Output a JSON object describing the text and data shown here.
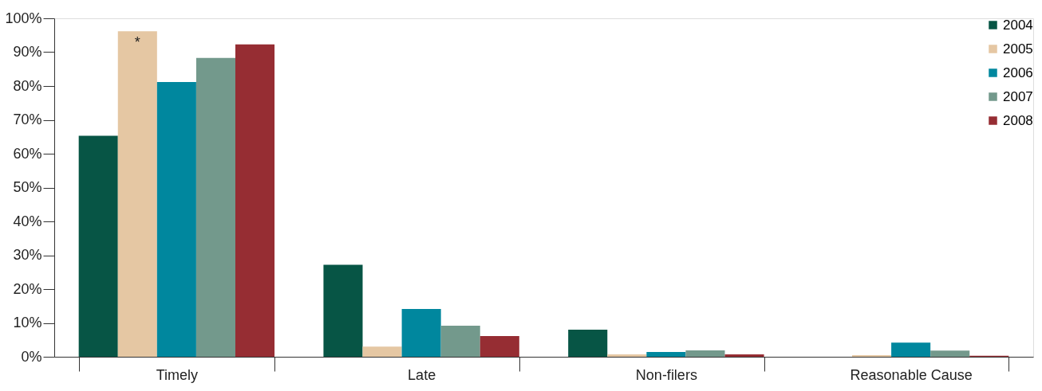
{
  "chart_data": {
    "type": "bar",
    "categories": [
      "Timely",
      "Late",
      "Non-filers",
      "Reasonable Cause"
    ],
    "series": [
      {
        "name": "2004",
        "color": "#075545",
        "values": [
          65.3,
          27.2,
          8.0,
          0
        ]
      },
      {
        "name": "2005",
        "color": "#e5c7a3",
        "values": [
          96.2,
          3.0,
          0.7,
          0.5
        ]
      },
      {
        "name": "2006",
        "color": "#00879e",
        "values": [
          81.2,
          14.1,
          1.4,
          4.2
        ]
      },
      {
        "name": "2007",
        "color": "#73998c",
        "values": [
          88.3,
          9.2,
          1.9,
          1.8
        ]
      },
      {
        "name": "2008",
        "color": "#962d33",
        "values": [
          92.3,
          6.1,
          0.7,
          0.3
        ]
      }
    ],
    "ylim": [
      0,
      100
    ],
    "yticks": [
      {
        "value": 0,
        "label": "0%"
      },
      {
        "value": 10,
        "label": "10%"
      },
      {
        "value": 20,
        "label": "20%"
      },
      {
        "value": 30,
        "label": "30%"
      },
      {
        "value": 40,
        "label": "40%"
      },
      {
        "value": 50,
        "label": "50%"
      },
      {
        "value": 60,
        "label": "60%"
      },
      {
        "value": 70,
        "label": "70%"
      },
      {
        "value": 80,
        "label": "80%"
      },
      {
        "value": 90,
        "label": "90%"
      },
      {
        "value": 100,
        "label": "100%"
      }
    ],
    "annotations": [
      "*"
    ],
    "grid": false,
    "legend": "top right"
  }
}
